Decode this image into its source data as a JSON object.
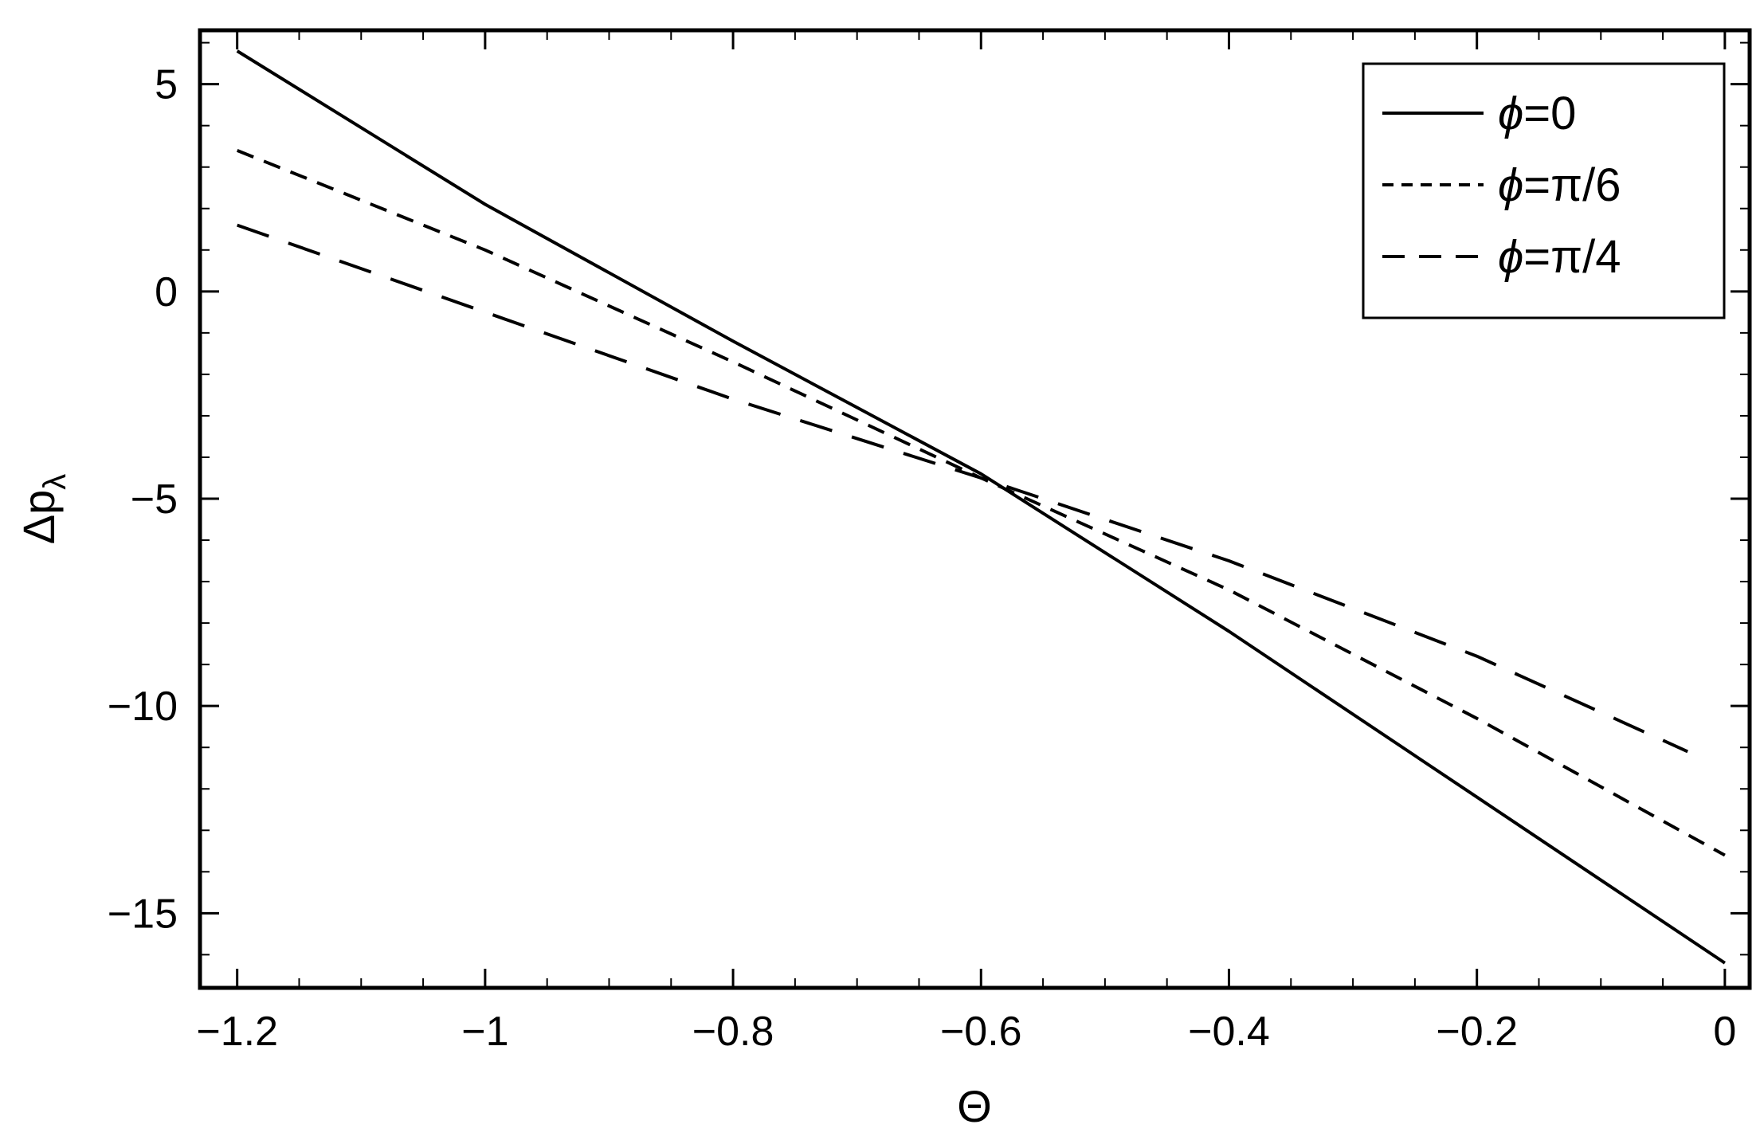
{
  "chart_data": {
    "type": "line",
    "title": "",
    "xlabel": "Θ",
    "ylabel_main": "Δp",
    "ylabel_sub": "λ",
    "xlim": [
      -1.23,
      0.02
    ],
    "ylim": [
      -16.8,
      6.3
    ],
    "x_ticks": [
      -1.2,
      -1.0,
      -0.8,
      -0.6,
      -0.4,
      -0.2,
      0.0
    ],
    "x_tick_labels": [
      "−1.2",
      "−1",
      "−0.8",
      "−0.6",
      "−0.4",
      "−0.2",
      "0"
    ],
    "y_ticks": [
      5,
      0,
      -5,
      -10,
      -15
    ],
    "y_tick_labels": [
      "5",
      "0",
      "−5",
      "−10",
      "−15"
    ],
    "grid": false,
    "legend_position": "top-right",
    "series": [
      {
        "name": "ϕ=0",
        "label_symbol": "ϕ",
        "label_value": "=0",
        "style": "solid",
        "x": [
          -1.2,
          -1.0,
          -0.8,
          -0.6,
          -0.4,
          -0.2,
          0.0
        ],
        "y": [
          5.8,
          2.1,
          -1.2,
          -4.4,
          -8.2,
          -12.2,
          -16.2
        ]
      },
      {
        "name": "ϕ=π/6",
        "label_symbol": "ϕ",
        "label_value": "=π/6",
        "style": "short-dash",
        "x": [
          -1.2,
          -1.0,
          -0.8,
          -0.6,
          -0.4,
          -0.2,
          0.0
        ],
        "y": [
          3.4,
          1.0,
          -1.7,
          -4.5,
          -7.2,
          -10.3,
          -13.6
        ]
      },
      {
        "name": "ϕ=π/4",
        "label_symbol": "ϕ",
        "label_value": "=π/4",
        "style": "long-dash",
        "x": [
          -1.2,
          -1.0,
          -0.8,
          -0.6,
          -0.4,
          -0.2,
          -0.03
        ],
        "y": [
          1.6,
          -0.5,
          -2.6,
          -4.5,
          -6.5,
          -8.8,
          -11.1
        ]
      }
    ]
  }
}
